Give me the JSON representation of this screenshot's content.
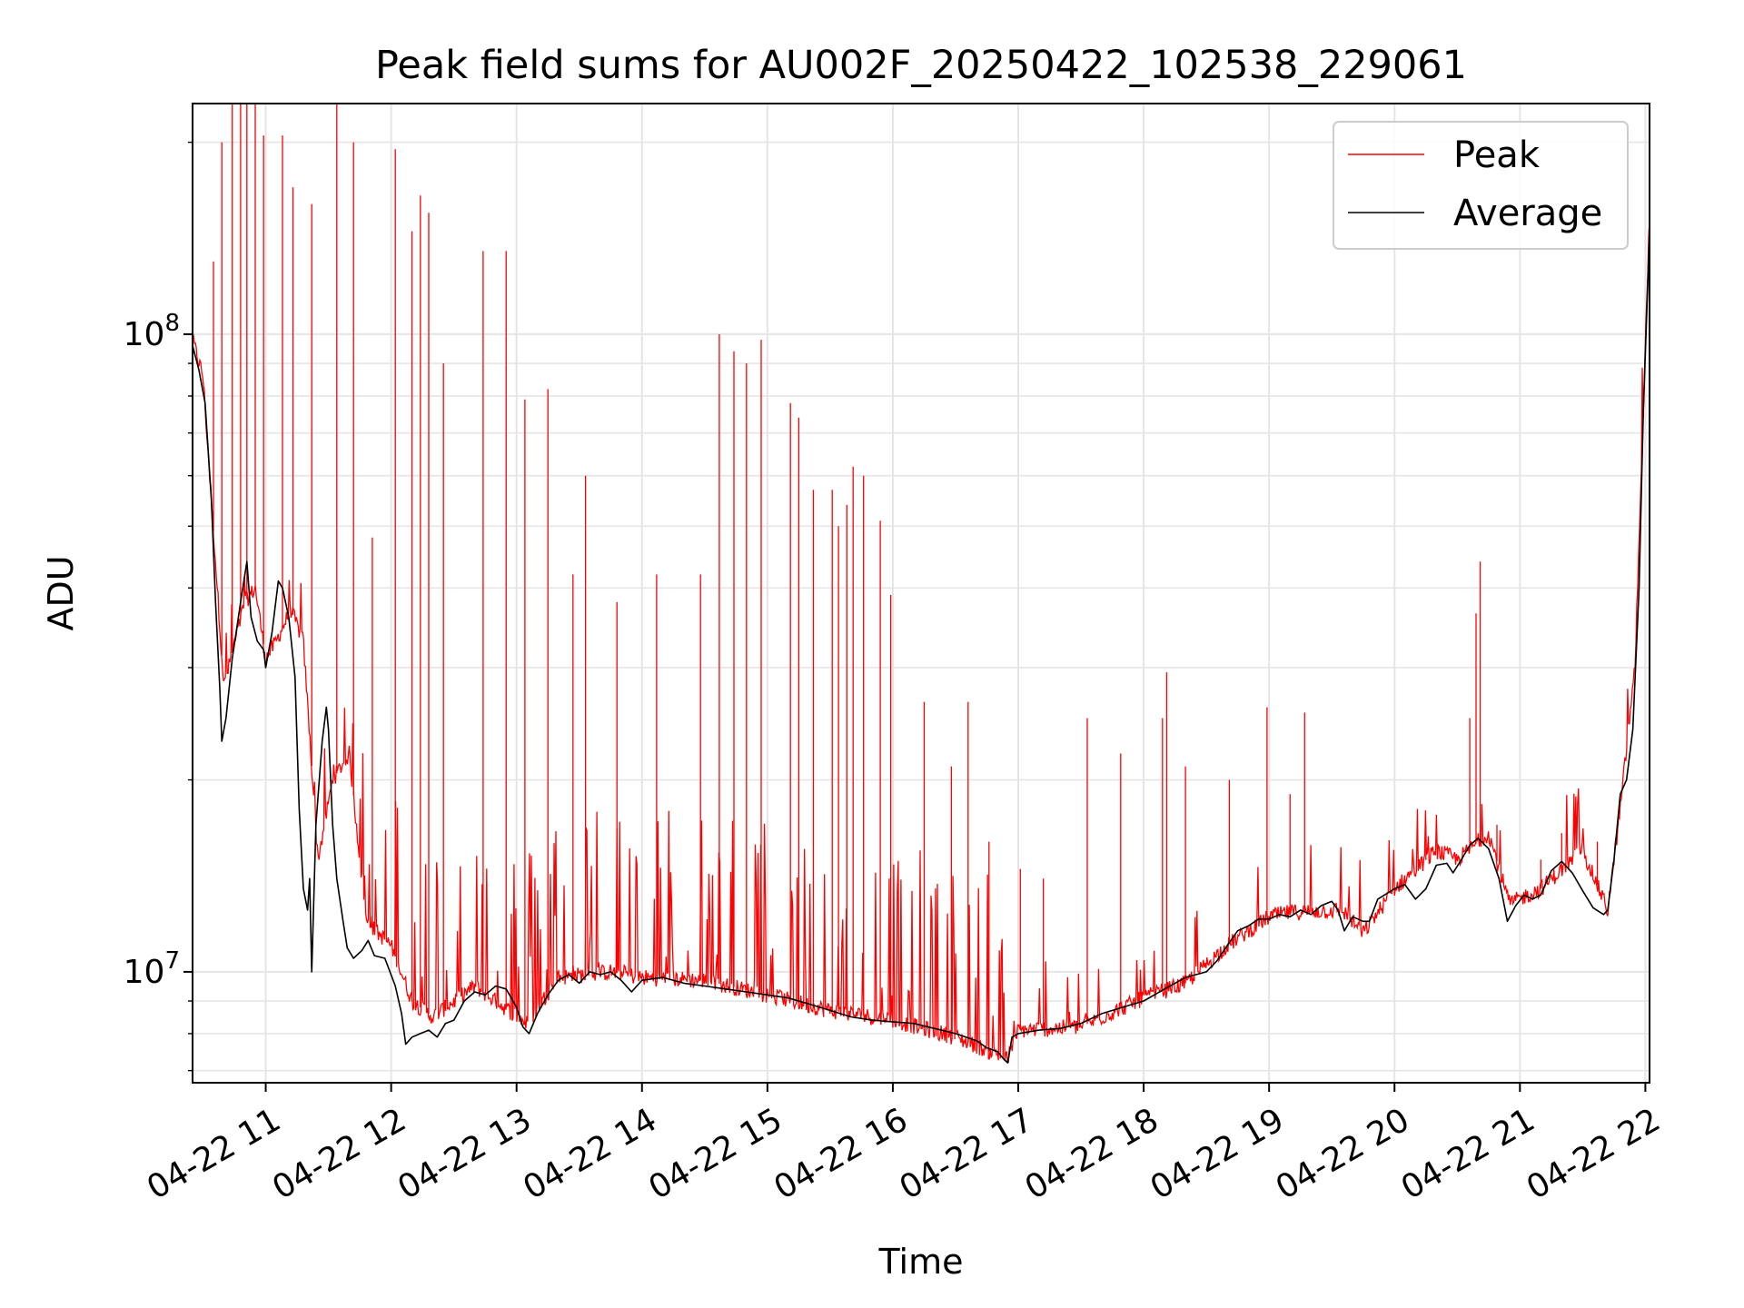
{
  "chart_data": {
    "type": "line",
    "title": "Peak field sums for AU002F_20250422_102538_229061",
    "xlabel": "Time",
    "ylabel": "ADU",
    "yscale": "log",
    "ylim": [
      6700000,
      230000000
    ],
    "xlim": [
      "2025-04-22 10:25",
      "2025-04-22 22:02"
    ],
    "x_ticks": [
      "04-22 11",
      "04-22 12",
      "04-22 13",
      "04-22 14",
      "04-22 15",
      "04-22 16",
      "04-22 17",
      "04-22 18",
      "04-22 19",
      "04-22 20",
      "04-22 21",
      "04-22 22"
    ],
    "y_ticks": [
      {
        "value": 10000000,
        "base": "10",
        "exp": "7"
      },
      {
        "value": 100000000,
        "base": "10",
        "exp": "8"
      }
    ],
    "grid": true,
    "legend_position": "top-right",
    "series": [
      {
        "name": "Peak",
        "color": "#ff0000",
        "baseline": [
          [
            "10:25",
            98000000
          ],
          [
            "10:30",
            86000000
          ],
          [
            "10:40",
            28000000
          ],
          [
            "10:50",
            38000000
          ],
          [
            "10:55",
            40000000
          ],
          [
            "11:00",
            31000000
          ],
          [
            "11:05",
            33000000
          ],
          [
            "11:12",
            37000000
          ],
          [
            "11:18",
            33000000
          ],
          [
            "11:25",
            15000000
          ],
          [
            "11:32",
            20000000
          ],
          [
            "11:40",
            22000000
          ],
          [
            "11:48",
            12000000
          ],
          [
            "12:00",
            11000000
          ],
          [
            "12:10",
            9000000
          ],
          [
            "12:20",
            8500000
          ],
          [
            "12:40",
            9500000
          ],
          [
            "13:05",
            8300000
          ],
          [
            "13:20",
            9800000
          ],
          [
            "13:45",
            10000000
          ],
          [
            "14:00",
            9800000
          ],
          [
            "14:30",
            9700000
          ],
          [
            "15:00",
            9200000
          ],
          [
            "15:30",
            8700000
          ],
          [
            "16:00",
            8400000
          ],
          [
            "16:30",
            7900000
          ],
          [
            "16:55",
            7300000
          ],
          [
            "17:00",
            8100000
          ],
          [
            "17:30",
            8200000
          ],
          [
            "18:00",
            9100000
          ],
          [
            "18:20",
            9600000
          ],
          [
            "18:40",
            11000000
          ],
          [
            "19:00",
            12200000
          ],
          [
            "19:10",
            12400000
          ],
          [
            "19:35",
            12500000
          ],
          [
            "19:45",
            11500000
          ],
          [
            "20:00",
            13500000
          ],
          [
            "20:20",
            15500000
          ],
          [
            "20:30",
            15000000
          ],
          [
            "20:45",
            16500000
          ],
          [
            "20:55",
            12800000
          ],
          [
            "21:10",
            13500000
          ],
          [
            "21:30",
            15500000
          ],
          [
            "21:42",
            12500000
          ],
          [
            "21:48",
            18000000
          ],
          [
            "21:55",
            30000000
          ],
          [
            "22:02",
            155000000
          ]
        ],
        "spikes": [
          [
            "10:35",
            130000000
          ],
          [
            "10:39",
            200000000
          ],
          [
            "10:44",
            230000000
          ],
          [
            "10:48",
            230000000
          ],
          [
            "10:51",
            230000000
          ],
          [
            "10:55",
            230000000
          ],
          [
            "10:59",
            205000000
          ],
          [
            "11:08",
            205000000
          ],
          [
            "11:13",
            170000000
          ],
          [
            "11:22",
            160000000
          ],
          [
            "11:34",
            230000000
          ],
          [
            "11:42",
            200000000
          ],
          [
            "11:51",
            48000000
          ],
          [
            "12:02",
            195000000
          ],
          [
            "12:10",
            145000000
          ],
          [
            "12:14",
            165000000
          ],
          [
            "12:18",
            155000000
          ],
          [
            "12:25",
            90000000
          ],
          [
            "12:44",
            135000000
          ],
          [
            "12:55",
            135000000
          ],
          [
            "13:04",
            79000000
          ],
          [
            "13:15",
            82000000
          ],
          [
            "13:27",
            42000000
          ],
          [
            "13:33",
            60000000
          ],
          [
            "13:48",
            38000000
          ],
          [
            "14:07",
            42000000
          ],
          [
            "14:28",
            42000000
          ],
          [
            "14:37",
            100000000
          ],
          [
            "14:44",
            94000000
          ],
          [
            "14:50",
            90000000
          ],
          [
            "14:57",
            98000000
          ],
          [
            "15:11",
            78000000
          ],
          [
            "15:15",
            74000000
          ],
          [
            "15:22",
            57000000
          ],
          [
            "15:31",
            57000000
          ],
          [
            "15:34",
            50000000
          ],
          [
            "15:38",
            54000000
          ],
          [
            "15:41",
            62000000
          ],
          [
            "15:46",
            60000000
          ],
          [
            "15:54",
            51000000
          ],
          [
            "15:59",
            39000000
          ],
          [
            "16:15",
            26500000
          ],
          [
            "16:28",
            21000000
          ],
          [
            "16:36",
            26500000
          ],
          [
            "16:46",
            16000000
          ],
          [
            "17:01",
            14500000
          ],
          [
            "17:12",
            14000000
          ],
          [
            "17:33",
            25000000
          ],
          [
            "17:49",
            22000000
          ],
          [
            "18:09",
            25000000
          ],
          [
            "18:11",
            29500000
          ],
          [
            "18:20",
            21000000
          ],
          [
            "18:41",
            20000000
          ],
          [
            "18:59",
            26000000
          ],
          [
            "19:10",
            19000000
          ],
          [
            "19:17",
            25500000
          ],
          [
            "20:15",
            17000000
          ],
          [
            "20:36",
            25000000
          ],
          [
            "20:39",
            36500000
          ],
          [
            "20:41",
            44000000
          ],
          [
            "20:49",
            17000000
          ],
          [
            "21:10",
            15000000
          ],
          [
            "21:20",
            16500000
          ],
          [
            "21:37",
            16000000
          ],
          [
            "21:47",
            17500000
          ]
        ]
      },
      {
        "name": "Average",
        "color": "#000000",
        "points": [
          [
            "10:25",
            96000000
          ],
          [
            "10:28",
            88000000
          ],
          [
            "10:31",
            78000000
          ],
          [
            "10:34",
            55000000
          ],
          [
            "10:36",
            38000000
          ],
          [
            "10:38",
            28000000
          ],
          [
            "10:39",
            23000000
          ],
          [
            "10:41",
            25000000
          ],
          [
            "10:44",
            31000000
          ],
          [
            "10:48",
            38000000
          ],
          [
            "10:51",
            44000000
          ],
          [
            "10:53",
            36000000
          ],
          [
            "10:56",
            33000000
          ],
          [
            "10:59",
            32000000
          ],
          [
            "11:00",
            30000000
          ],
          [
            "11:03",
            34000000
          ],
          [
            "11:06",
            41000000
          ],
          [
            "11:08",
            40000000
          ],
          [
            "11:11",
            36000000
          ],
          [
            "11:14",
            29000000
          ],
          [
            "11:16",
            18000000
          ],
          [
            "11:18",
            13500000
          ],
          [
            "11:20",
            12500000
          ],
          [
            "11:21",
            14000000
          ],
          [
            "11:22",
            10000000
          ],
          [
            "11:24",
            17000000
          ],
          [
            "11:27",
            23000000
          ],
          [
            "11:29",
            26000000
          ],
          [
            "11:30",
            24000000
          ],
          [
            "11:32",
            17000000
          ],
          [
            "11:34",
            14000000
          ],
          [
            "11:37",
            12000000
          ],
          [
            "11:39",
            10900000
          ],
          [
            "11:42",
            10500000
          ],
          [
            "11:46",
            10800000
          ],
          [
            "11:49",
            11200000
          ],
          [
            "11:52",
            10600000
          ],
          [
            "11:57",
            10500000
          ],
          [
            "12:02",
            9500000
          ],
          [
            "12:05",
            8600000
          ],
          [
            "12:07",
            7700000
          ],
          [
            "12:10",
            7900000
          ],
          [
            "12:14",
            8000000
          ],
          [
            "12:18",
            8100000
          ],
          [
            "12:22",
            7900000
          ],
          [
            "12:26",
            8300000
          ],
          [
            "12:30",
            8400000
          ],
          [
            "12:35",
            9000000
          ],
          [
            "12:40",
            9300000
          ],
          [
            "12:45",
            9200000
          ],
          [
            "12:50",
            9500000
          ],
          [
            "12:55",
            9400000
          ],
          [
            "13:00",
            8800000
          ],
          [
            "13:03",
            8200000
          ],
          [
            "13:06",
            8000000
          ],
          [
            "13:10",
            8600000
          ],
          [
            "13:15",
            9200000
          ],
          [
            "13:20",
            9700000
          ],
          [
            "13:25",
            9900000
          ],
          [
            "13:30",
            9600000
          ],
          [
            "13:35",
            10000000
          ],
          [
            "13:40",
            9900000
          ],
          [
            "13:45",
            10000000
          ],
          [
            "13:50",
            9700000
          ],
          [
            "13:55",
            9300000
          ],
          [
            "14:00",
            9700000
          ],
          [
            "14:10",
            9800000
          ],
          [
            "14:20",
            9600000
          ],
          [
            "14:30",
            9500000
          ],
          [
            "14:40",
            9400000
          ],
          [
            "14:50",
            9300000
          ],
          [
            "15:00",
            9200000
          ],
          [
            "15:10",
            9100000
          ],
          [
            "15:20",
            8900000
          ],
          [
            "15:30",
            8700000
          ],
          [
            "15:40",
            8500000
          ],
          [
            "15:50",
            8400000
          ],
          [
            "16:00",
            8350000
          ],
          [
            "16:10",
            8300000
          ],
          [
            "16:20",
            8150000
          ],
          [
            "16:30",
            8000000
          ],
          [
            "16:40",
            7800000
          ],
          [
            "16:45",
            7600000
          ],
          [
            "16:50",
            7500000
          ],
          [
            "16:53",
            7300000
          ],
          [
            "16:55",
            7200000
          ],
          [
            "16:57",
            7900000
          ],
          [
            "17:00",
            8000000
          ],
          [
            "17:10",
            8100000
          ],
          [
            "17:20",
            8150000
          ],
          [
            "17:30",
            8300000
          ],
          [
            "17:40",
            8600000
          ],
          [
            "17:50",
            8800000
          ],
          [
            "18:00",
            9000000
          ],
          [
            "18:10",
            9400000
          ],
          [
            "18:20",
            9800000
          ],
          [
            "18:30",
            10000000
          ],
          [
            "18:35",
            10400000
          ],
          [
            "18:40",
            11000000
          ],
          [
            "18:45",
            11600000
          ],
          [
            "18:50",
            11800000
          ],
          [
            "18:55",
            12100000
          ],
          [
            "19:00",
            12100000
          ],
          [
            "19:05",
            12300000
          ],
          [
            "19:10",
            12200000
          ],
          [
            "19:15",
            12500000
          ],
          [
            "19:20",
            12300000
          ],
          [
            "19:25",
            12700000
          ],
          [
            "19:30",
            12900000
          ],
          [
            "19:33",
            12500000
          ],
          [
            "19:36",
            11600000
          ],
          [
            "19:40",
            12200000
          ],
          [
            "19:45",
            12000000
          ],
          [
            "19:48",
            12000000
          ],
          [
            "19:52",
            13000000
          ],
          [
            "20:00",
            13500000
          ],
          [
            "20:05",
            13700000
          ],
          [
            "20:10",
            13000000
          ],
          [
            "20:15",
            13500000
          ],
          [
            "20:20",
            14700000
          ],
          [
            "20:25",
            14800000
          ],
          [
            "20:28",
            14300000
          ],
          [
            "20:32",
            15000000
          ],
          [
            "20:36",
            15800000
          ],
          [
            "20:40",
            16200000
          ],
          [
            "20:45",
            15600000
          ],
          [
            "20:50",
            14000000
          ],
          [
            "20:54",
            12000000
          ],
          [
            "20:58",
            12700000
          ],
          [
            "21:02",
            13200000
          ],
          [
            "21:06",
            13000000
          ],
          [
            "21:10",
            13200000
          ],
          [
            "21:15",
            14400000
          ],
          [
            "21:20",
            14900000
          ],
          [
            "21:25",
            14300000
          ],
          [
            "21:30",
            13400000
          ],
          [
            "21:35",
            12600000
          ],
          [
            "21:40",
            12300000
          ],
          [
            "21:42",
            12500000
          ],
          [
            "21:45",
            15000000
          ],
          [
            "21:48",
            19000000
          ],
          [
            "21:51",
            20000000
          ],
          [
            "21:54",
            24000000
          ],
          [
            "21:57",
            40000000
          ],
          [
            "21:59",
            75000000
          ],
          [
            "22:02",
            145000000
          ]
        ]
      }
    ]
  }
}
